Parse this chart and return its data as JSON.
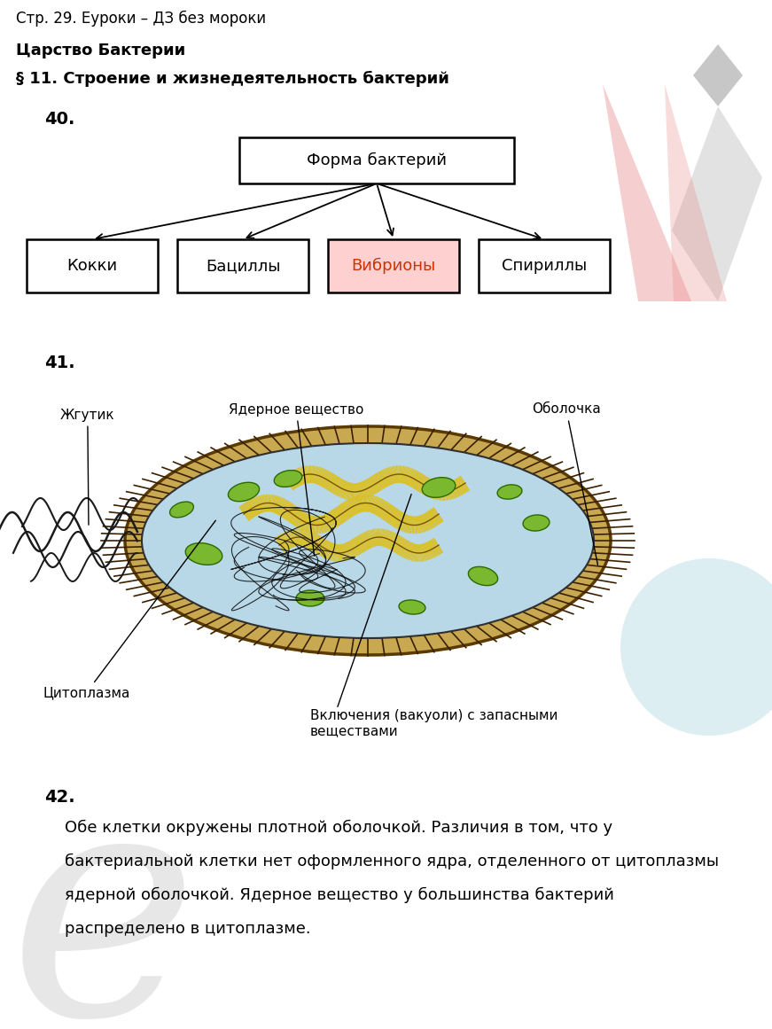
{
  "title1": "Стр. 29. Еуроки – ДЗ без мороки",
  "title2": "Царство Бактерии",
  "title3": "§ 11. Строение и жизнедеятельность бактерий",
  "num40": "40.",
  "num41": "41.",
  "num42": "42.",
  "root_box_text": "Форма бактерий",
  "child_boxes": [
    "Кокки",
    "Бациллы",
    "Вибрионы",
    "Спириллы"
  ],
  "vibr_fill": "#ffd0d0",
  "normal_fill": "#ffffff",
  "box_edge": "#000000",
  "text_color_normal": "#000000",
  "text_color_vibr": "#cc3300",
  "root_text_color": "#000000",
  "labels_cell": {
    "zhutik": "Жгутик",
    "yadernoe": "Ядерное вещество",
    "obolochka": "Оболочка",
    "citoplazma": "Цитоплазма",
    "vklyucheniya": "Включения (вакуоли) с запасными\nвеществами"
  },
  "text42_lines": [
    "    Обе клетки окружены плотной оболочкой. Различия в том, что у",
    "    бактериальной клетки нет оформленного ядра, отделенного от цитоплазмы",
    "    ядерной оболочкой. Ядерное вещество у большинства бактерий",
    "    распределено в цитоплазме."
  ],
  "bg_color": "#ffffff",
  "font_size_h1": 12,
  "font_size_h2": 13,
  "font_size_h3": 13,
  "font_size_box": 13,
  "font_size_label": 11,
  "font_size_body": 13
}
